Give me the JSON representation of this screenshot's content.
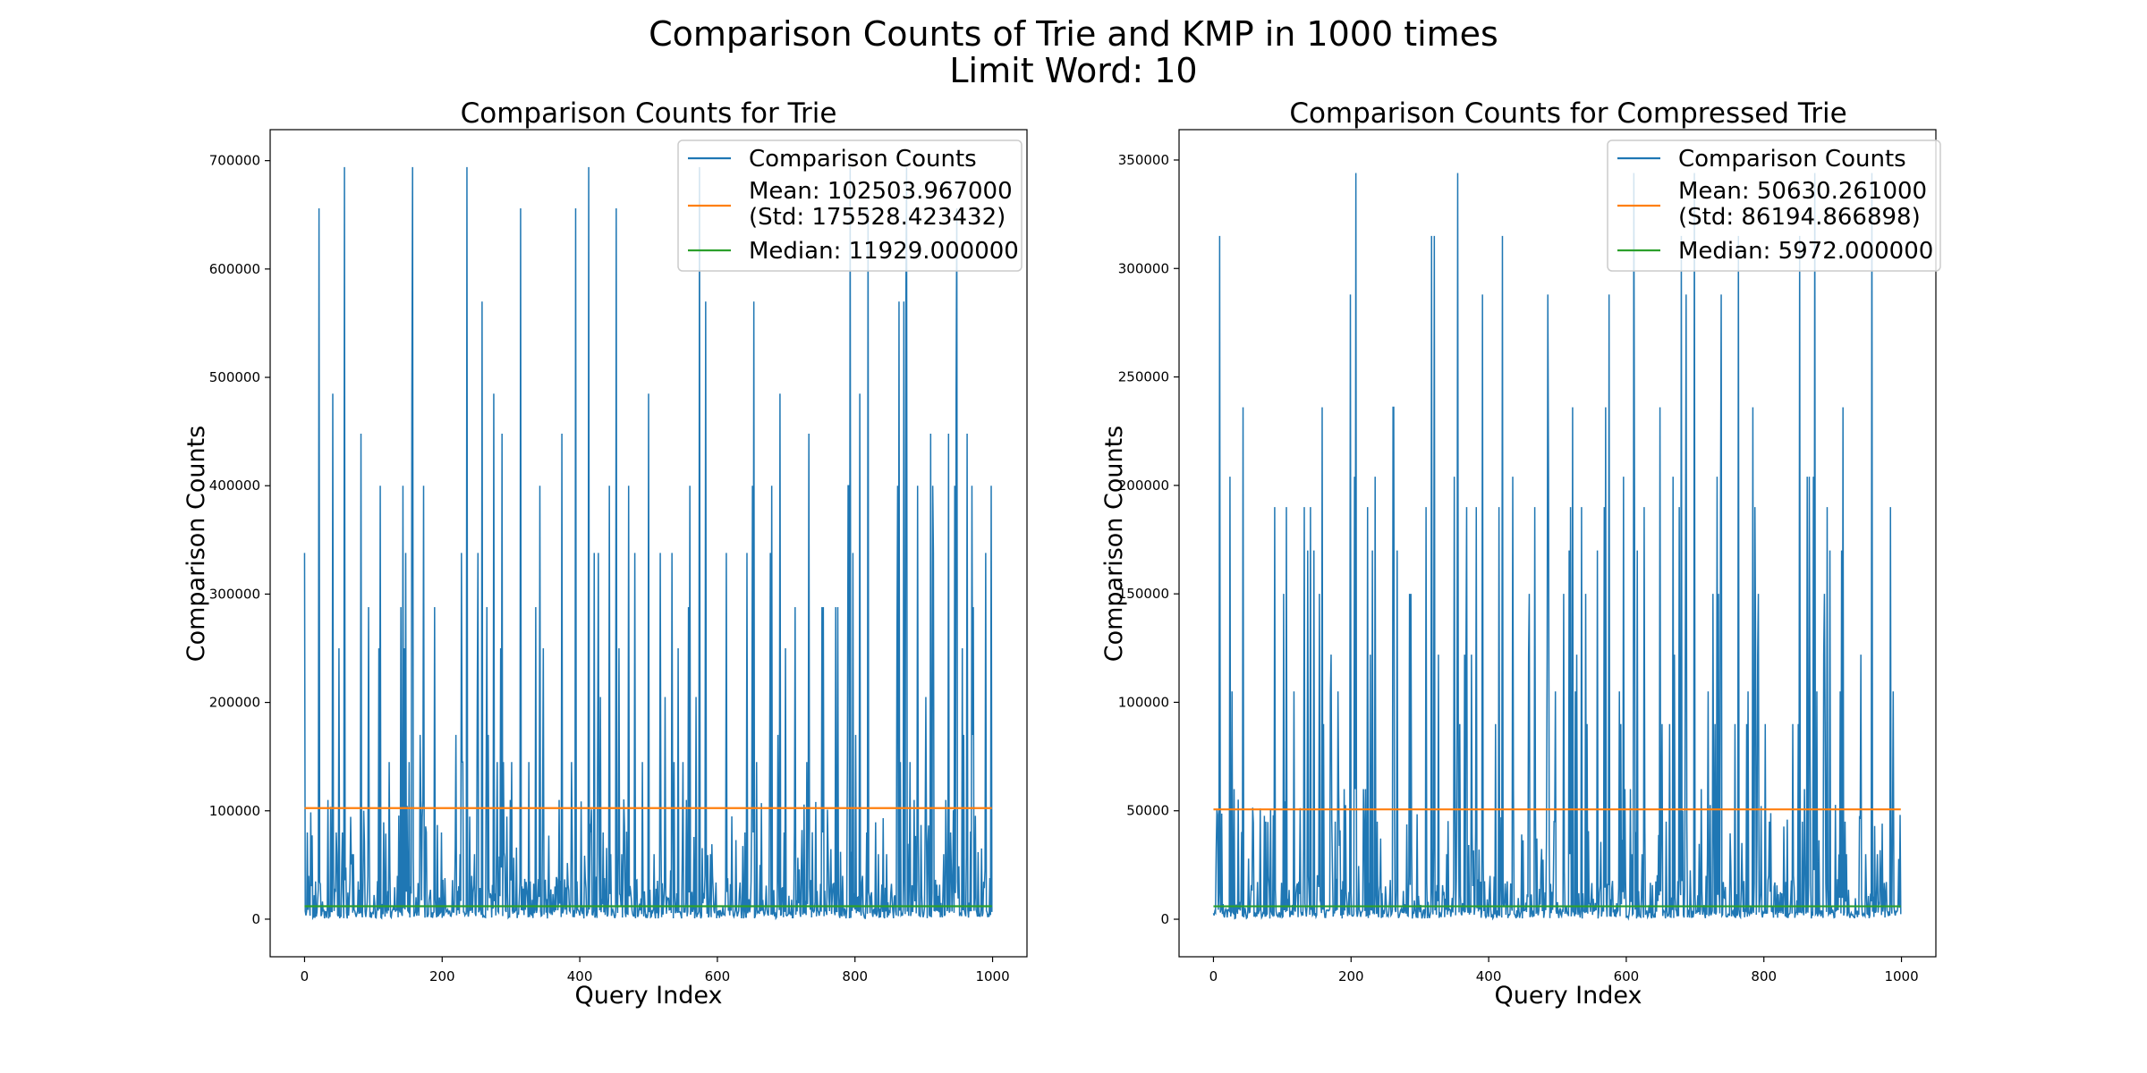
{
  "figure": {
    "title_line1": "Comparison Counts of Trie and KMP in 1000 times",
    "title_line2": "Limit Word: 10"
  },
  "colors": {
    "counts": "#1f77b4",
    "mean": "#ff7f0e",
    "median": "#2ca02c"
  },
  "chart_data": [
    {
      "type": "line",
      "title": "Comparison Counts for Trie",
      "xlabel": "Query Index",
      "ylabel": "Comparison Counts",
      "xlim": [
        -50,
        1050
      ],
      "ylim": [
        -34700,
        728600
      ],
      "x_ticks": [
        0,
        200,
        400,
        600,
        800,
        1000
      ],
      "y_ticks": [
        0,
        100000,
        200000,
        300000,
        400000,
        500000,
        600000,
        700000
      ],
      "legend_position": "upper-right",
      "legend": [
        "Comparison Counts",
        "Mean: 102503.967000",
        "(Std: 175528.423432)",
        "Median: 11929.000000"
      ],
      "n_points": 1000,
      "mean": 102503.967,
      "median": 11929,
      "std": 175528.423432,
      "peak_levels": [
        694000,
        656000,
        570000,
        485000,
        448000,
        400000,
        338000,
        288000,
        250000,
        205000,
        170000,
        145000,
        110000,
        80000,
        60000,
        40000
      ],
      "seed": 12345
    },
    {
      "type": "line",
      "title": "Comparison Counts for Compressed Trie",
      "xlabel": "Query Index",
      "ylabel": "Comparison Counts",
      "xlim": [
        -50,
        1050
      ],
      "ylim": [
        -17300,
        364000
      ],
      "x_ticks": [
        0,
        200,
        400,
        600,
        800,
        1000
      ],
      "y_ticks": [
        0,
        50000,
        100000,
        150000,
        200000,
        250000,
        300000,
        350000
      ],
      "legend_position": "upper-right",
      "legend": [
        "Comparison Counts",
        "Mean: 50630.261000",
        "(Std: 86194.866898)",
        "Median: 5972.000000"
      ],
      "n_points": 1000,
      "mean": 50630.261,
      "median": 5972,
      "std": 86194.866898,
      "peak_levels": [
        344000,
        315000,
        288000,
        236000,
        204000,
        190000,
        170000,
        150000,
        122000,
        105000,
        90000,
        60000,
        45000,
        30000,
        20000
      ],
      "seed": 67890
    }
  ]
}
